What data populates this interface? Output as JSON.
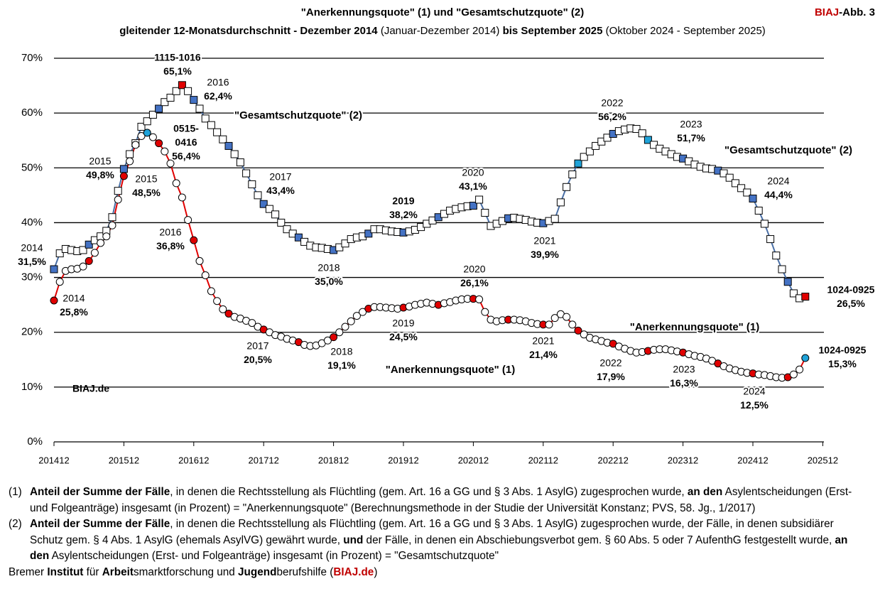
{
  "chart_data": {
    "type": "line",
    "title": "\"Anerkennungsquote\" (1) und \"Gesamtschutzquote\" (2)",
    "subtitle": [
      {
        "text": "gleitender 12-Monatsdurchschnitt - Dezember 2014 ",
        "bold": true
      },
      {
        "text": "(Januar-Dezember 2014)",
        "bold": false
      },
      {
        "text": " bis September 2025",
        "bold": true
      },
      {
        "text": " (Oktober 2024 - September 2025)",
        "bold": false
      }
    ],
    "badge": [
      {
        "text": "BIAJ",
        "color": "#c00000"
      },
      {
        "text": "-Abb. 3",
        "color": "#000000"
      }
    ],
    "watermark": "BIAJ.de",
    "watermark_color": "#c00000",
    "x": [
      "201412",
      "201501",
      "201502",
      "201503",
      "201504",
      "201505",
      "201506",
      "201507",
      "201508",
      "201509",
      "201510",
      "201511",
      "201512",
      "201601",
      "201602",
      "201603",
      "201604",
      "201605",
      "201606",
      "201607",
      "201608",
      "201609",
      "201610",
      "201611",
      "201612",
      "201701",
      "201702",
      "201703",
      "201704",
      "201705",
      "201706",
      "201707",
      "201708",
      "201709",
      "201710",
      "201711",
      "201712",
      "201801",
      "201802",
      "201803",
      "201804",
      "201805",
      "201806",
      "201807",
      "201808",
      "201809",
      "201810",
      "201811",
      "201812",
      "201901",
      "201902",
      "201903",
      "201904",
      "201905",
      "201906",
      "201907",
      "201908",
      "201909",
      "201910",
      "201911",
      "201912",
      "202001",
      "202002",
      "202003",
      "202004",
      "202005",
      "202006",
      "202007",
      "202008",
      "202009",
      "202010",
      "202011",
      "202012",
      "202101",
      "202102",
      "202103",
      "202104",
      "202105",
      "202106",
      "202107",
      "202108",
      "202109",
      "202110",
      "202111",
      "202112",
      "202201",
      "202202",
      "202203",
      "202204",
      "202205",
      "202206",
      "202207",
      "202208",
      "202209",
      "202210",
      "202211",
      "202212",
      "202301",
      "202302",
      "202303",
      "202304",
      "202305",
      "202306",
      "202307",
      "202308",
      "202309",
      "202310",
      "202311",
      "202312",
      "202401",
      "202402",
      "202403",
      "202404",
      "202405",
      "202406",
      "202407",
      "202408",
      "202409",
      "202410",
      "202411",
      "202412",
      "202501",
      "202502",
      "202503",
      "202504",
      "202505",
      "202506",
      "202507",
      "202508",
      "202509"
    ],
    "xticks": [
      "201412",
      "201512",
      "201612",
      "201712",
      "201812",
      "201912",
      "202012",
      "202112",
      "202212",
      "202312",
      "202412",
      "202512"
    ],
    "ylim": [
      0,
      70
    ],
    "yticks": [
      {
        "value": 0,
        "label": "0%"
      },
      {
        "value": 10,
        "label": "10%"
      },
      {
        "value": 20,
        "label": "20%"
      },
      {
        "value": 30,
        "label": "30%"
      },
      {
        "value": 40,
        "label": "40%"
      },
      {
        "value": 50,
        "label": "50%"
      },
      {
        "value": 60,
        "label": "60%"
      },
      {
        "value": 70,
        "label": "70%"
      }
    ],
    "grid": true,
    "highlight_indices": [
      0,
      6,
      12,
      18,
      24,
      30,
      36,
      42,
      48,
      54,
      60,
      66,
      72,
      78,
      84,
      90,
      96,
      102,
      108,
      114,
      120,
      126
    ],
    "series": [
      {
        "name": "\"Gesamtschutzquote\" (2)",
        "color": "#4a6fa5",
        "marker": "square",
        "highlight_color": "#4472c4",
        "special_markers": [
          {
            "index": 22,
            "color": "#e00000"
          },
          {
            "index": 129,
            "color": "#e00000"
          },
          {
            "index": 90,
            "color": "#1fa3d9"
          },
          {
            "index": 102,
            "color": "#1fa3d9"
          }
        ],
        "values": [
          31.5,
          34.4,
          35.2,
          35.0,
          34.8,
          35.0,
          36.0,
          36.8,
          37.5,
          38.5,
          41.0,
          45.8,
          49.8,
          52.5,
          54.5,
          57.5,
          58.5,
          59.7,
          60.8,
          62.0,
          62.8,
          64.0,
          65.1,
          64.0,
          62.4,
          60.8,
          59.0,
          57.8,
          56.5,
          55.2,
          54.0,
          52.5,
          51.0,
          49.0,
          47.0,
          45.0,
          43.4,
          42.5,
          41.5,
          40.0,
          38.8,
          38.0,
          37.3,
          36.5,
          35.8,
          35.5,
          35.4,
          35.2,
          35.0,
          35.5,
          36.2,
          37.0,
          37.3,
          37.5,
          38.0,
          38.8,
          38.8,
          38.6,
          38.4,
          38.3,
          38.2,
          38.4,
          38.7,
          39.2,
          39.8,
          40.4,
          41.0,
          41.6,
          42.2,
          42.5,
          42.8,
          43.0,
          43.1,
          44.2,
          41.8,
          39.4,
          39.8,
          40.3,
          40.8,
          40.9,
          40.7,
          40.5,
          40.2,
          40.0,
          39.9,
          40.3,
          40.7,
          43.7,
          46.5,
          48.8,
          50.8,
          52.0,
          53.0,
          54.0,
          54.8,
          55.5,
          56.2,
          56.7,
          57.0,
          57.2,
          57.1,
          56.3,
          55.1,
          54.2,
          53.5,
          53.0,
          52.5,
          52.0,
          51.7,
          51.2,
          50.6,
          50.2,
          49.9,
          49.8,
          49.5,
          49.0,
          48.2,
          47.2,
          46.3,
          45.5,
          44.4,
          42.2,
          39.8,
          37.0,
          34.0,
          31.5,
          29.2,
          27.1,
          26.2,
          26.5
        ],
        "labels": [
          {
            "index": 0,
            "lines": [
              "2014"
            ],
            "value_label": "31,5%",
            "bold": false
          },
          {
            "index": 12,
            "lines": [
              "2015"
            ],
            "value_label": "49,8%",
            "bold": false
          },
          {
            "index": 22,
            "lines": [
              "1115-1016"
            ],
            "value_label": "65,1%",
            "bold": true
          },
          {
            "index": 24,
            "lines": [
              "2016"
            ],
            "value_label": "62,4%",
            "bold": false
          },
          {
            "index": 36,
            "lines": [
              "2017"
            ],
            "value_label": "43,4%",
            "bold": false
          },
          {
            "index": 48,
            "lines": [
              "2018"
            ],
            "value_label": "35,0%",
            "bold": false
          },
          {
            "index": 60,
            "lines": [
              "2019"
            ],
            "value_label": "38,2%",
            "bold": true
          },
          {
            "index": 72,
            "lines": [
              "2020"
            ],
            "value_label": "43,1%",
            "bold": false
          },
          {
            "index": 84,
            "lines": [
              "2021"
            ],
            "value_label": "39,9%",
            "bold": false
          },
          {
            "index": 96,
            "lines": [
              "2022"
            ],
            "value_label": "56,2%",
            "bold": false
          },
          {
            "index": 108,
            "lines": [
              "2023"
            ],
            "value_label": "51,7%",
            "bold": false
          },
          {
            "index": 120,
            "lines": [
              "2024"
            ],
            "value_label": "44,4%",
            "bold": false
          },
          {
            "index": 129,
            "lines": [
              "1024-0925"
            ],
            "value_label": "26,5%",
            "bold": true
          }
        ]
      },
      {
        "name": "\"Anerkennungsquote\" (1)",
        "color": "#e00000",
        "marker": "circle",
        "highlight_color": "#e00000",
        "special_markers": [
          {
            "index": 16,
            "color": "#1fa3d9"
          },
          {
            "index": 129,
            "color": "#1fa3d9"
          }
        ],
        "values": [
          25.8,
          29.2,
          31.2,
          31.5,
          31.6,
          32.0,
          33.0,
          34.5,
          36.3,
          37.5,
          39.5,
          44.2,
          48.5,
          51.2,
          54.2,
          55.8,
          56.4,
          55.6,
          54.5,
          53.0,
          50.8,
          47.2,
          44.6,
          40.5,
          36.8,
          33.0,
          30.4,
          27.5,
          25.7,
          24.2,
          23.4,
          22.8,
          22.5,
          22.1,
          21.7,
          21.0,
          20.5,
          20.0,
          19.5,
          19.2,
          18.8,
          18.5,
          18.2,
          17.7,
          17.5,
          17.6,
          18.0,
          18.5,
          19.1,
          20.0,
          21.0,
          22.0,
          23.0,
          23.7,
          24.3,
          24.6,
          24.6,
          24.5,
          24.4,
          24.3,
          24.5,
          24.7,
          25.0,
          25.2,
          25.4,
          25.2,
          25.0,
          25.3,
          25.5,
          25.8,
          26.0,
          26.1,
          26.1,
          26.0,
          23.7,
          22.3,
          22.0,
          22.2,
          22.3,
          22.3,
          22.2,
          22.0,
          21.7,
          21.5,
          21.4,
          21.4,
          22.6,
          23.3,
          22.8,
          21.4,
          20.3,
          19.6,
          19.0,
          18.7,
          18.4,
          18.1,
          17.9,
          17.4,
          17.0,
          16.6,
          16.3,
          16.4,
          16.6,
          16.8,
          16.9,
          16.9,
          16.7,
          16.5,
          16.3,
          16.0,
          15.7,
          15.5,
          15.2,
          14.8,
          14.3,
          13.8,
          13.4,
          13.1,
          12.8,
          12.6,
          12.5,
          12.3,
          12.2,
          12.0,
          11.8,
          11.7,
          11.8,
          12.3,
          13.2,
          15.3
        ],
        "labels": [
          {
            "index": 0,
            "lines": [
              "2014"
            ],
            "value_label": "25,8%",
            "bold": false
          },
          {
            "index": 12,
            "lines": [
              "2015"
            ],
            "value_label": "48,5%",
            "bold": false
          },
          {
            "index": 16,
            "lines": [
              "0515-",
              "0416"
            ],
            "value_label": "56,4%",
            "bold": true
          },
          {
            "index": 24,
            "lines": [
              "2016"
            ],
            "value_label": "36,8%",
            "bold": false
          },
          {
            "index": 36,
            "lines": [
              "2017"
            ],
            "value_label": "20,5%",
            "bold": false
          },
          {
            "index": 48,
            "lines": [
              "2018"
            ],
            "value_label": "19,1%",
            "bold": false
          },
          {
            "index": 60,
            "lines": [
              "2019"
            ],
            "value_label": "24,5%",
            "bold": false
          },
          {
            "index": 72,
            "lines": [
              "2020"
            ],
            "value_label": "26,1%",
            "bold": false
          },
          {
            "index": 84,
            "lines": [
              "2021"
            ],
            "value_label": "21,4%",
            "bold": false
          },
          {
            "index": 96,
            "lines": [
              "2022"
            ],
            "value_label": "17,9%",
            "bold": false
          },
          {
            "index": 108,
            "lines": [
              "2023"
            ],
            "value_label": "16,3%",
            "bold": false
          },
          {
            "index": 120,
            "lines": [
              "2024"
            ],
            "value_label": "12,5%",
            "bold": false
          },
          {
            "index": 129,
            "lines": [
              "1024-0925"
            ],
            "value_label": "15,3%",
            "bold": true
          }
        ]
      }
    ]
  },
  "footnotes": [
    {
      "marker": "(1)",
      "parts": [
        {
          "text": "Anteil der Summe der Fälle",
          "bold": true
        },
        {
          "text": ", in denen die Rechtsstellung als Flüchtling (gem. Art. 16 a GG und § 3 Abs. 1 AsylG) zugesprochen wurde, ",
          "bold": false
        },
        {
          "text": "an den",
          "bold": true
        },
        {
          "text": " Asylentscheidungen (Erst- und Folgeanträge) insgesamt (in Prozent) = \"Anerkennungsquote\" (Berechnungsmethode in der Studie der Universität Konstanz; PVS, 58. Jg., 1/2017)",
          "bold": false
        }
      ]
    },
    {
      "marker": "(2)",
      "parts": [
        {
          "text": "Anteil der Summe der Fälle",
          "bold": true
        },
        {
          "text": ", in denen die Rechtsstellung als Flüchtling (gem. Art. 16 a GG und § 3 Abs. 1 AsylG) zugesprochen wurde, der Fälle, in denen subsidiärer Schutz gem. § 4 Abs. 1 AsylG (ehemals AsylVG) gewährt wurde, ",
          "bold": false
        },
        {
          "text": "und",
          "bold": true
        },
        {
          "text": " der Fälle, in denen ein Abschiebungsverbot gem. § 60 Abs. 5 oder 7 AufenthG festgestellt wurde, ",
          "bold": false
        },
        {
          "text": "an den",
          "bold": true
        },
        {
          "text": " Asylentscheidungen (Erst- und Folgeanträge) insgesamt (in Prozent) = \"Gesamtschutzquote\"",
          "bold": false
        }
      ]
    }
  ],
  "footer": [
    {
      "text": "Bremer ",
      "bold": false
    },
    {
      "text": "Institut",
      "bold": true
    },
    {
      "text": " für ",
      "bold": false
    },
    {
      "text": "Arbeit",
      "bold": true
    },
    {
      "text": "smarktforschung und ",
      "bold": false
    },
    {
      "text": "Jugend",
      "bold": true
    },
    {
      "text": "berufshilfe (",
      "bold": false
    },
    {
      "text": "BIAJ.de",
      "bold": true,
      "color": "#c00000"
    },
    {
      "text": ")",
      "bold": false
    }
  ]
}
